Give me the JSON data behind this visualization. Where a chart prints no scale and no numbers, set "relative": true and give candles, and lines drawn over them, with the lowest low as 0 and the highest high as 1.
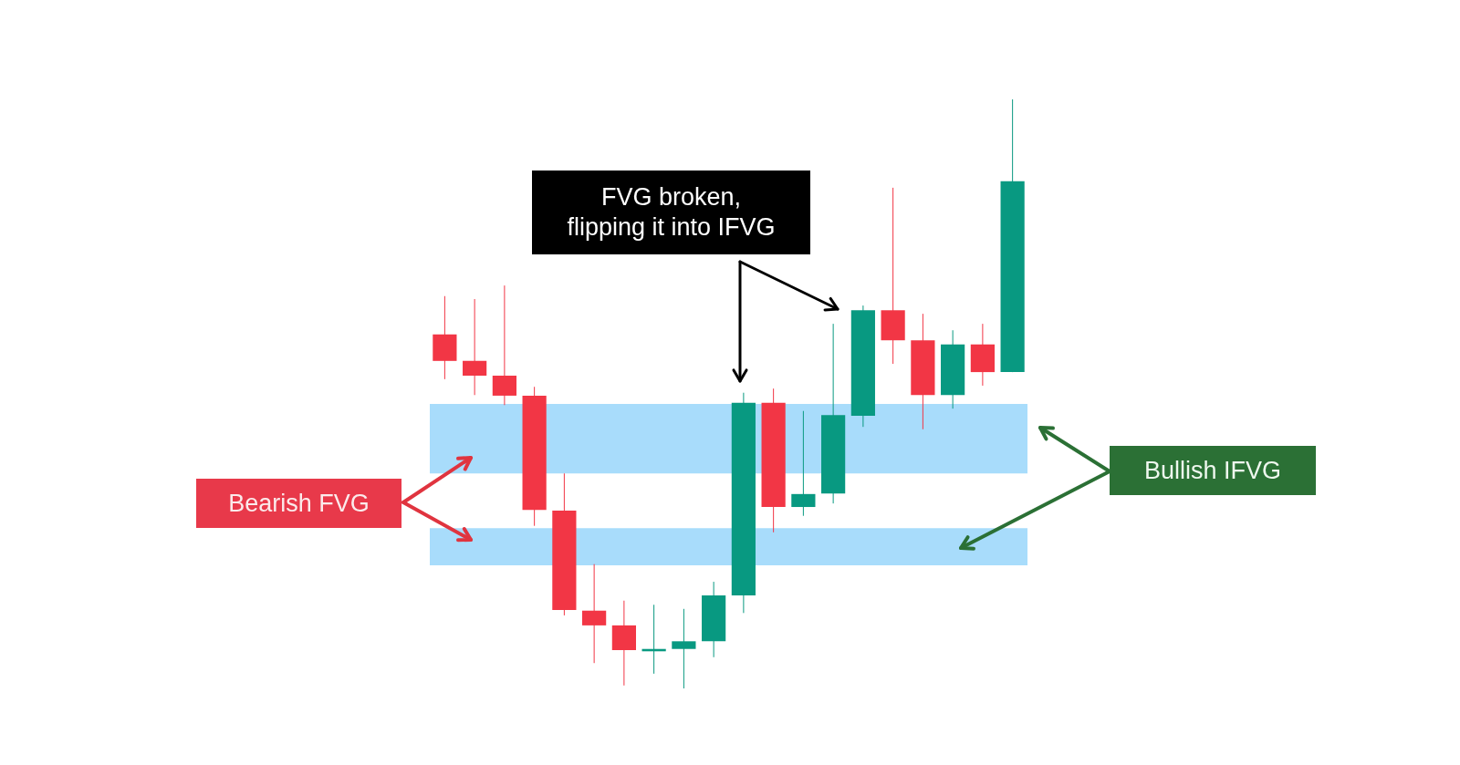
{
  "chart_data": {
    "type": "candlestick",
    "relative": true,
    "categories": [
      null,
      null,
      null,
      null,
      null,
      null,
      null,
      null,
      null,
      null,
      null,
      null,
      null,
      null,
      null,
      null,
      null,
      null,
      null,
      null
    ],
    "ohlc": [
      [
        0.601,
        0.666,
        0.525,
        0.556
      ],
      [
        0.556,
        0.661,
        0.498,
        0.531
      ],
      [
        0.531,
        0.684,
        0.481,
        0.497
      ],
      [
        0.497,
        0.512,
        0.276,
        0.303
      ],
      [
        0.302,
        0.365,
        0.124,
        0.133
      ],
      [
        0.132,
        0.211,
        0.043,
        0.107
      ],
      [
        0.107,
        0.149,
        0.005,
        0.065
      ],
      [
        0.063,
        0.142,
        0.025,
        0.067
      ],
      [
        0.067,
        0.135,
        0,
        0.08
      ],
      [
        0.08,
        0.181,
        0.053,
        0.158
      ],
      [
        0.158,
        0.502,
        0.128,
        0.485
      ],
      [
        0.485,
        0.509,
        0.265,
        0.308
      ],
      [
        0.308,
        0.471,
        0.293,
        0.33
      ],
      [
        0.331,
        0.619,
        0.314,
        0.464
      ],
      [
        0.463,
        0.65,
        0.444,
        0.642
      ],
      [
        0.642,
        0.85,
        0.551,
        0.591
      ],
      [
        0.591,
        0.636,
        0.44,
        0.498
      ],
      [
        0.498,
        0.608,
        0.475,
        0.584
      ],
      [
        0.584,
        0.619,
        0.514,
        0.537
      ],
      [
        0.537,
        1,
        0.537,
        0.861
      ]
    ],
    "colors": [
      "#f23645",
      "#f23645",
      "#f23645",
      "#f23645",
      "#f23645",
      "#f23645",
      "#f23645",
      "#089981",
      "#089981",
      "#089981",
      "#089981",
      "#f23645",
      "#089981",
      "#089981",
      "#089981",
      "#f23645",
      "#f23645",
      "#089981",
      "#f23645",
      "#089981"
    ],
    "bands": [
      {
        "axis": "y",
        "from": 0.365,
        "to": 0.483,
        "color": "#42b3f6"
      },
      {
        "axis": "y",
        "from": 0.209,
        "to": 0.272,
        "color": "#42b3f6"
      }
    ],
    "annotations": [
      "FVG broken,\nflipping it into IFVG",
      "Bearish FVG",
      "Bullish IFVG"
    ]
  }
}
